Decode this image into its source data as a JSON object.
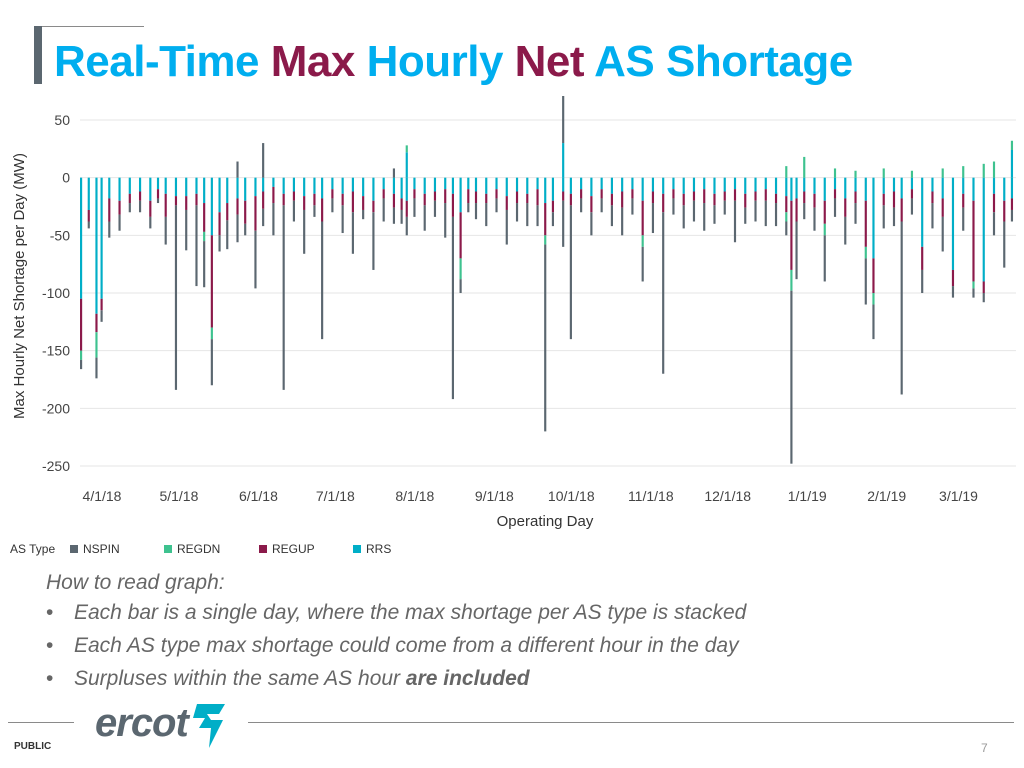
{
  "title": {
    "parts": [
      {
        "text": "Real-Time",
        "color": "#00aeef"
      },
      {
        "text": "Max",
        "color": "#8b1a4a"
      },
      {
        "text": "Hourly",
        "color": "#00aeef"
      },
      {
        "text": "Net",
        "color": "#8b1a4a"
      },
      {
        "text": "AS Shortage",
        "color": "#00aeef"
      }
    ]
  },
  "chart_data": {
    "type": "bar",
    "stacked": true,
    "title": "",
    "xlabel": "Operating Day",
    "ylabel": "Max Hourly Net Shortage per Day (MW)",
    "ylim": [
      -250,
      50
    ],
    "yticks": [
      50,
      0,
      -50,
      -100,
      -150,
      -200,
      -250
    ],
    "grid": true,
    "x_range": [
      "2018-04-01",
      "2019-03-31"
    ],
    "x_tick_labels": [
      "4/1/18",
      "5/1/18",
      "6/1/18",
      "7/1/18",
      "8/1/18",
      "9/1/18",
      "10/1/18",
      "11/1/18",
      "12/1/18",
      "1/1/19",
      "2/1/19",
      "3/1/19"
    ],
    "x_tick_dates": [
      "2018-04-01",
      "2018-05-01",
      "2018-06-01",
      "2018-07-01",
      "2018-08-01",
      "2018-09-01",
      "2018-10-01",
      "2018-11-01",
      "2018-12-01",
      "2019-01-01",
      "2019-02-01",
      "2019-03-01"
    ],
    "legend_title": "AS Type",
    "legend_position": "bottom-left",
    "series": [
      {
        "name": "NSPIN",
        "color": "#5b6770"
      },
      {
        "name": "REGDN",
        "color": "#3ec28f"
      },
      {
        "name": "REGUP",
        "color": "#8b1a4a"
      },
      {
        "name": "RRS",
        "color": "#00aec7"
      }
    ],
    "points": [
      {
        "date": "2018-04-01",
        "RRS": -105,
        "REGUP": -45,
        "REGDN": -8,
        "NSPIN": -8
      },
      {
        "date": "2018-04-04",
        "RRS": -28,
        "REGUP": -10,
        "NSPIN": -6
      },
      {
        "date": "2018-04-07",
        "RRS": -118,
        "REGUP": -16,
        "REGDN": -22,
        "NSPIN": -18
      },
      {
        "date": "2018-04-09",
        "RRS": -105,
        "REGUP": -10,
        "NSPIN": -10
      },
      {
        "date": "2018-04-12",
        "RRS": -18,
        "REGUP": -20,
        "NSPIN": -14
      },
      {
        "date": "2018-04-16",
        "RRS": -20,
        "REGUP": -12,
        "NSPIN": -14
      },
      {
        "date": "2018-04-20",
        "RRS": -14,
        "REGUP": -8,
        "NSPIN": -8
      },
      {
        "date": "2018-04-24",
        "RRS": -12,
        "REGUP": -8,
        "NSPIN": -10
      },
      {
        "date": "2018-04-28",
        "RRS": -20,
        "REGUP": -14,
        "NSPIN": -10
      },
      {
        "date": "2018-05-01",
        "RRS": -10,
        "REGUP": -8,
        "NSPIN": -4
      },
      {
        "date": "2018-05-04",
        "RRS": -14,
        "REGUP": -20,
        "NSPIN": -24
      },
      {
        "date": "2018-05-08",
        "RRS": -16,
        "REGUP": -8,
        "NSPIN": -160
      },
      {
        "date": "2018-05-12",
        "RRS": -16,
        "REGUP": -12,
        "NSPIN": -35
      },
      {
        "date": "2018-05-16",
        "RRS": -14,
        "REGUP": -10,
        "NSPIN": -70
      },
      {
        "date": "2018-05-19",
        "RRS": -22,
        "REGUP": -25,
        "REGDN": -8,
        "NSPIN": -40
      },
      {
        "date": "2018-05-22",
        "RRS": -50,
        "REGUP": -80,
        "REGDN": -10,
        "NSPIN": -40
      },
      {
        "date": "2018-05-25",
        "RRS": -30,
        "REGUP": -20,
        "NSPIN": -14
      },
      {
        "date": "2018-05-28",
        "RRS": -22,
        "REGUP": -15,
        "NSPIN": -25
      },
      {
        "date": "2018-06-01",
        "RRS": -18,
        "REGUP": -14,
        "NSPIN": -24,
        "NSPIN_pos": 14
      },
      {
        "date": "2018-06-04",
        "RRS": -20,
        "REGUP": -20,
        "NSPIN": -10
      },
      {
        "date": "2018-06-08",
        "RRS": -16,
        "REGUP": -30,
        "NSPIN": -50
      },
      {
        "date": "2018-06-11",
        "RRS": -12,
        "REGUP": -15,
        "NSPIN": -15,
        "NSPIN_pos": 30
      },
      {
        "date": "2018-06-15",
        "RRS": -8,
        "REGUP": -14,
        "NSPIN": -28
      },
      {
        "date": "2018-06-19",
        "RRS": -14,
        "REGUP": -10,
        "NSPIN": -160
      },
      {
        "date": "2018-06-23",
        "RRS": -12,
        "REGUP": -8,
        "NSPIN": -18
      },
      {
        "date": "2018-06-27",
        "RRS": -16,
        "REGUP": -12,
        "NSPIN": -38
      },
      {
        "date": "2018-07-01",
        "RRS": -14,
        "REGUP": -10,
        "NSPIN": -10
      },
      {
        "date": "2018-07-04",
        "RRS": -18,
        "REGUP": -20,
        "NSPIN": -102
      },
      {
        "date": "2018-07-08",
        "RRS": -10,
        "REGUP": -8,
        "NSPIN": -12
      },
      {
        "date": "2018-07-12",
        "RRS": -14,
        "REGUP": -10,
        "NSPIN": -24
      },
      {
        "date": "2018-07-16",
        "RRS": -12,
        "REGUP": -18,
        "NSPIN": -36
      },
      {
        "date": "2018-07-20",
        "RRS": -16,
        "REGUP": -12,
        "NSPIN": -8
      },
      {
        "date": "2018-07-24",
        "RRS": -20,
        "REGUP": -10,
        "NSPIN": -50
      },
      {
        "date": "2018-07-28",
        "RRS": -10,
        "REGUP": -8,
        "NSPIN": -20
      },
      {
        "date": "2018-08-01",
        "RRS": -14,
        "REGUP": -12,
        "NSPIN": -14,
        "NSPIN_pos": 8
      },
      {
        "date": "2018-08-04",
        "RRS": -18,
        "REGUP": -10,
        "NSPIN": -12
      },
      {
        "date": "2018-08-06",
        "RRS": -20,
        "REGUP": -14,
        "NSPIN": -16,
        "RRS_pos": 22,
        "REGDN_pos": 6
      },
      {
        "date": "2018-08-09",
        "RRS": -10,
        "REGUP": -8,
        "NSPIN": -16
      },
      {
        "date": "2018-08-13",
        "RRS": -14,
        "REGUP": -10,
        "NSPIN": -22
      },
      {
        "date": "2018-08-17",
        "RRS": -12,
        "REGUP": -8,
        "NSPIN": -14
      },
      {
        "date": "2018-08-21",
        "RRS": -10,
        "REGUP": -12,
        "NSPIN": -30
      },
      {
        "date": "2018-08-24",
        "RRS": -14,
        "REGUP": -20,
        "NSPIN": -158
      },
      {
        "date": "2018-08-27",
        "RRS": -30,
        "REGUP": -40,
        "REGDN": -18,
        "NSPIN": -12
      },
      {
        "date": "2018-08-30",
        "RRS": -10,
        "REGUP": -12,
        "NSPIN": -8
      },
      {
        "date": "2018-09-02",
        "RRS": -12,
        "REGUP": -10,
        "NSPIN": -14
      },
      {
        "date": "2018-09-06",
        "RRS": -14,
        "REGUP": -8,
        "NSPIN": -20
      },
      {
        "date": "2018-09-10",
        "RRS": -10,
        "REGUP": -8,
        "NSPIN": -12
      },
      {
        "date": "2018-09-14",
        "RRS": -16,
        "REGUP": -12,
        "NSPIN": -30
      },
      {
        "date": "2018-09-18",
        "RRS": -12,
        "REGUP": -10,
        "NSPIN": -16
      },
      {
        "date": "2018-09-22",
        "RRS": -14,
        "REGUP": -8,
        "NSPIN": -20
      },
      {
        "date": "2018-09-26",
        "RRS": -10,
        "REGUP": -14,
        "NSPIN": -18
      },
      {
        "date": "2018-09-29",
        "RRS": -22,
        "REGUP": -28,
        "REGDN": -8,
        "NSPIN": -162
      },
      {
        "date": "2018-10-02",
        "RRS": -20,
        "REGUP": -10,
        "NSPIN": -12
      },
      {
        "date": "2018-10-06",
        "RRS": -12,
        "REGUP": -8,
        "NSPIN": -40,
        "NSPIN_pos": 52,
        "RRS_pos": 30
      },
      {
        "date": "2018-10-09",
        "RRS": -14,
        "REGUP": -10,
        "NSPIN": -116
      },
      {
        "date": "2018-10-13",
        "RRS": -10,
        "REGUP": -8,
        "NSPIN": -12
      },
      {
        "date": "2018-10-17",
        "RRS": -16,
        "REGUP": -14,
        "NSPIN": -20
      },
      {
        "date": "2018-10-21",
        "RRS": -10,
        "REGUP": -8,
        "NSPIN": -12
      },
      {
        "date": "2018-10-25",
        "RRS": -14,
        "REGUP": -10,
        "NSPIN": -18
      },
      {
        "date": "2018-10-29",
        "RRS": -12,
        "REGUP": -14,
        "NSPIN": -24
      },
      {
        "date": "2018-11-02",
        "RRS": -10,
        "REGUP": -8,
        "NSPIN": -14
      },
      {
        "date": "2018-11-06",
        "RRS": -20,
        "REGUP": -30,
        "REGDN": -10,
        "NSPIN": -30
      },
      {
        "date": "2018-11-10",
        "RRS": -12,
        "REGUP": -10,
        "NSPIN": -26
      },
      {
        "date": "2018-11-14",
        "RRS": -14,
        "REGUP": -16,
        "NSPIN": -140
      },
      {
        "date": "2018-11-18",
        "RRS": -10,
        "REGUP": -8,
        "NSPIN": -14
      },
      {
        "date": "2018-11-22",
        "RRS": -14,
        "REGUP": -10,
        "NSPIN": -20
      },
      {
        "date": "2018-11-26",
        "RRS": -12,
        "REGUP": -8,
        "NSPIN": -18
      },
      {
        "date": "2018-11-30",
        "RRS": -10,
        "REGUP": -12,
        "NSPIN": -24
      },
      {
        "date": "2018-12-04",
        "RRS": -14,
        "REGUP": -10,
        "NSPIN": -16
      },
      {
        "date": "2018-12-08",
        "RRS": -12,
        "REGUP": -8,
        "NSPIN": -12
      },
      {
        "date": "2018-12-12",
        "RRS": -10,
        "REGUP": -10,
        "NSPIN": -36
      },
      {
        "date": "2018-12-16",
        "RRS": -14,
        "REGUP": -12,
        "NSPIN": -14
      },
      {
        "date": "2018-12-20",
        "RRS": -12,
        "REGUP": -8,
        "NSPIN": -18
      },
      {
        "date": "2018-12-24",
        "RRS": -10,
        "REGUP": -10,
        "NSPIN": -22
      },
      {
        "date": "2018-12-28",
        "RRS": -14,
        "REGUP": -8,
        "NSPIN": -20
      },
      {
        "date": "2019-01-01",
        "RRS": -16,
        "REGUP": -14,
        "REGDN": -8,
        "NSPIN": -12,
        "REGDN_pos": 10
      },
      {
        "date": "2019-01-03",
        "RRS": -20,
        "REGUP": -60,
        "REGDN": -18,
        "NSPIN": -150
      },
      {
        "date": "2019-01-05",
        "RRS": -18,
        "REGUP": -20,
        "NSPIN": -50
      },
      {
        "date": "2019-01-08",
        "RRS": -12,
        "REGUP": -10,
        "NSPIN": -14,
        "REGDN_pos": 18
      },
      {
        "date": "2019-01-12",
        "RRS": -14,
        "REGUP": -12,
        "NSPIN": -20
      },
      {
        "date": "2019-01-16",
        "RRS": -20,
        "REGUP": -20,
        "REGDN": -10,
        "NSPIN": -40
      },
      {
        "date": "2019-01-20",
        "RRS": -10,
        "REGUP": -8,
        "NSPIN": -16,
        "REGDN_pos": 8
      },
      {
        "date": "2019-01-24",
        "RRS": -18,
        "REGUP": -16,
        "NSPIN": -24
      },
      {
        "date": "2019-01-28",
        "RRS": -12,
        "REGUP": -10,
        "NSPIN": -18,
        "REGDN_pos": 6
      },
      {
        "date": "2019-02-01",
        "RRS": -20,
        "REGUP": -40,
        "REGDN": -10,
        "NSPIN": -40
      },
      {
        "date": "2019-02-04",
        "RRS": -70,
        "REGUP": -30,
        "REGDN": -10,
        "NSPIN": -30
      },
      {
        "date": "2019-02-08",
        "RRS": -14,
        "REGUP": -10,
        "NSPIN": -20,
        "REGDN_pos": 8
      },
      {
        "date": "2019-02-12",
        "RRS": -12,
        "REGUP": -14,
        "NSPIN": -16
      },
      {
        "date": "2019-02-15",
        "RRS": -18,
        "REGUP": -20,
        "NSPIN": -150
      },
      {
        "date": "2019-02-19",
        "RRS": -10,
        "REGUP": -8,
        "NSPIN": -14,
        "REGDN_pos": 6
      },
      {
        "date": "2019-02-23",
        "RRS": -60,
        "REGUP": -20,
        "NSPIN": -20
      },
      {
        "date": "2019-02-27",
        "RRS": -12,
        "REGUP": -10,
        "NSPIN": -22
      },
      {
        "date": "2019-03-03",
        "RRS": -18,
        "REGUP": -16,
        "NSPIN": -30,
        "REGDN_pos": 8
      },
      {
        "date": "2019-03-07",
        "RRS": -80,
        "REGUP": -14,
        "NSPIN": -10
      },
      {
        "date": "2019-03-11",
        "RRS": -14,
        "REGUP": -12,
        "NSPIN": -20,
        "REGDN_pos": 10
      },
      {
        "date": "2019-03-15",
        "RRS": -20,
        "REGUP": -70,
        "REGDN": -6,
        "NSPIN": -8
      },
      {
        "date": "2019-03-19",
        "RRS": -90,
        "REGUP": -10,
        "NSPIN": -8,
        "REGDN_pos": 12
      },
      {
        "date": "2019-03-23",
        "RRS": -14,
        "REGUP": -16,
        "NSPIN": -20,
        "REGDN_pos": 14
      },
      {
        "date": "2019-03-27",
        "RRS": -20,
        "REGUP": -18,
        "NSPIN": -40
      },
      {
        "date": "2019-03-30",
        "RRS": -18,
        "REGUP": -10,
        "NSPIN": -10,
        "RRS_pos": 24,
        "REGDN_pos": 8
      }
    ]
  },
  "notes": {
    "heading": "How to read graph:",
    "bullet_symbol": "•",
    "bullets": [
      {
        "text": "Each bar is a single day, where the max shortage per AS type is stacked",
        "bold": ""
      },
      {
        "text": "Each AS type max shortage could come from a different hour in the day",
        "bold": ""
      },
      {
        "text": "Surpluses within the same AS hour ",
        "bold": "are included"
      }
    ]
  },
  "footer": {
    "logo_text": "ercot",
    "logo_color": "#5b6770",
    "logo_mark_color": "#00aec7",
    "classification": "PUBLIC",
    "page_number": "7"
  }
}
